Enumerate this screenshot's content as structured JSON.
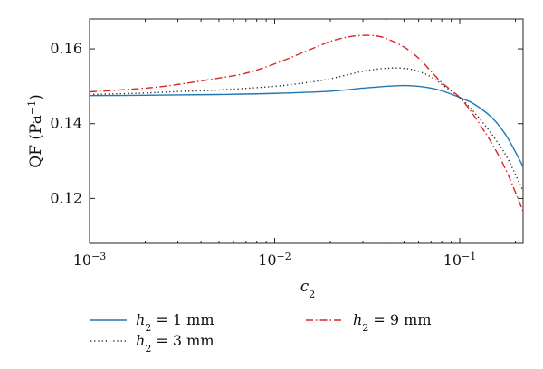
{
  "chart_data": {
    "type": "line",
    "x_scale": "log",
    "xlim": [
      0.001,
      0.22
    ],
    "ylim": [
      0.108,
      0.168
    ],
    "grid": false,
    "legend_placement": "bottom",
    "xlabel": "c",
    "xlabel_sub": "2",
    "ylabel": "QF (Pa",
    "ylabel_sup": "−1",
    "ylabel_close": ")",
    "x_ticks": [
      {
        "value": 0.001,
        "base": "10",
        "exp": "−3"
      },
      {
        "value": 0.01,
        "base": "10",
        "exp": "−2"
      },
      {
        "value": 0.1,
        "base": "10",
        "exp": "−1"
      }
    ],
    "y_ticks": [
      {
        "value": 0.12,
        "label": "0.12"
      },
      {
        "value": 0.14,
        "label": "0.14"
      },
      {
        "value": 0.16,
        "label": "0.16"
      }
    ],
    "series": [
      {
        "name_var": "h",
        "name_sub": "2",
        "name_rest": " = 1 mm",
        "color": "#1f77b4",
        "style": "solid",
        "x": [
          0.001,
          0.002,
          0.003,
          0.005,
          0.01,
          0.02,
          0.03,
          0.04,
          0.05,
          0.06,
          0.07,
          0.08,
          0.09,
          0.1,
          0.12,
          0.15,
          0.18,
          0.22
        ],
        "y": [
          0.1475,
          0.1476,
          0.1477,
          0.1478,
          0.1481,
          0.1487,
          0.1495,
          0.15,
          0.1502,
          0.15,
          0.1495,
          0.1488,
          0.1479,
          0.147,
          0.1452,
          0.1415,
          0.1365,
          0.1285
        ]
      },
      {
        "name_var": "h",
        "name_sub": "2",
        "name_rest": " = 3 mm",
        "color": "#222222",
        "style": "dotted",
        "x": [
          0.001,
          0.002,
          0.003,
          0.005,
          0.01,
          0.015,
          0.02,
          0.03,
          0.04,
          0.05,
          0.06,
          0.07,
          0.08,
          0.1,
          0.12,
          0.15,
          0.18,
          0.22
        ],
        "y": [
          0.1478,
          0.1482,
          0.1486,
          0.149,
          0.15,
          0.151,
          0.152,
          0.154,
          0.1548,
          0.1548,
          0.154,
          0.1525,
          0.1505,
          0.147,
          0.143,
          0.137,
          0.131,
          0.122
        ]
      },
      {
        "name_var": "h",
        "name_sub": "2",
        "name_rest": " = 9 mm",
        "color": "#d62728",
        "style": "dashdot",
        "x": [
          0.001,
          0.002,
          0.003,
          0.005,
          0.007,
          0.01,
          0.015,
          0.02,
          0.025,
          0.03,
          0.035,
          0.04,
          0.05,
          0.06,
          0.07,
          0.08,
          0.1,
          0.12,
          0.15,
          0.18,
          0.22
        ],
        "y": [
          0.1485,
          0.1495,
          0.1505,
          0.1522,
          0.1535,
          0.156,
          0.1595,
          0.162,
          0.1632,
          0.1636,
          0.1635,
          0.1628,
          0.1605,
          0.1575,
          0.154,
          0.151,
          0.147,
          0.142,
          0.1345,
          0.127,
          0.1165
        ]
      }
    ]
  }
}
